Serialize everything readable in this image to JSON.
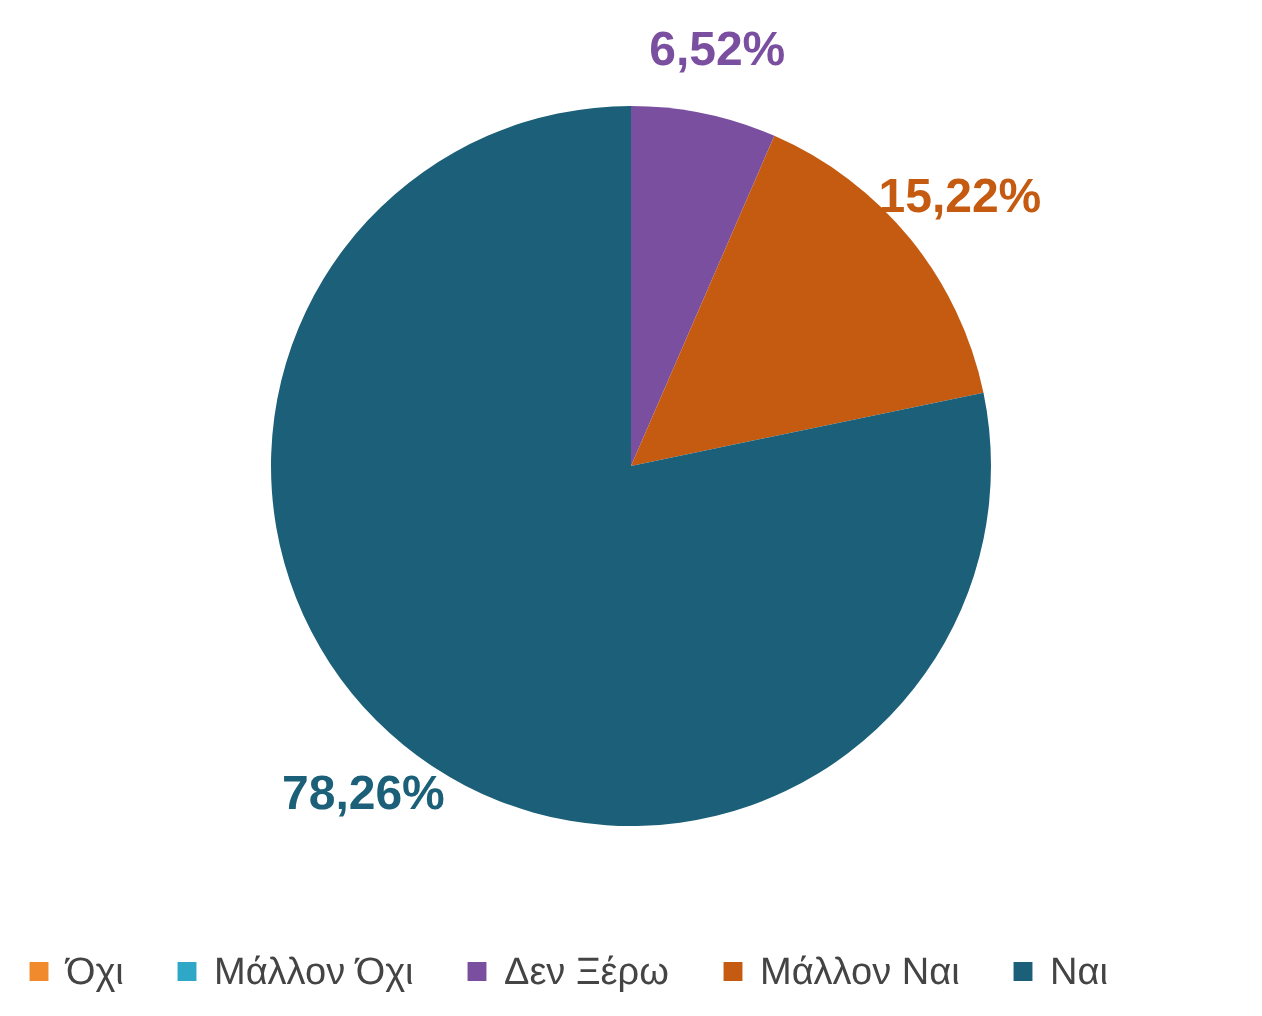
{
  "chart_data": {
    "type": "pie",
    "categories": [
      "Όχι",
      "Μάλλον Όχι",
      "Δεν Ξέρω",
      "Μάλλον Ναι",
      "Ναι"
    ],
    "values": [
      0,
      0,
      6.52,
      15.22,
      78.26
    ],
    "colors": [
      "#f08a2c",
      "#2fa8c8",
      "#7b4fa0",
      "#c55a11",
      "#1b5f78"
    ],
    "value_labels": [
      null,
      null,
      "6,52%",
      "15,22%",
      "78,26%"
    ],
    "legend": "bottom"
  }
}
